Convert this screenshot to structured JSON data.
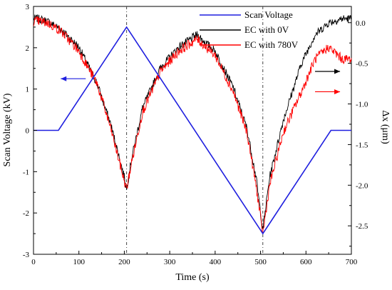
{
  "chart_data": {
    "type": "line",
    "title": "",
    "xlabel": "Time (s)",
    "ylabel_left": "Scan Voltage (kV)",
    "ylabel_right": "Δx (μm)",
    "xlim": [
      0,
      700
    ],
    "ylim_left": [
      -3,
      3
    ],
    "ylim_right": [
      -2.85,
      0.2
    ],
    "x_ticks": [
      "0",
      "100",
      "200",
      "300",
      "400",
      "500",
      "600",
      "700"
    ],
    "y_left_ticks": [
      "-3",
      "-2",
      "-1",
      "0",
      "1",
      "2",
      "3"
    ],
    "y_right_ticks": [
      "-2.5",
      "-2.0",
      "-1.5",
      "-1.0",
      "-0.5",
      "0.0"
    ],
    "legend_position": "top-right",
    "vertical_reference_lines_x": [
      205,
      505
    ],
    "series": [
      {
        "name": "Scan Voltage",
        "color": "#1f1fdf",
        "axis": "left",
        "x": [
          0,
          55,
          205,
          505,
          655,
          700
        ],
        "y": [
          0,
          0,
          2.5,
          -2.5,
          0,
          0
        ]
      },
      {
        "name": "EC with 0V",
        "color": "#000000",
        "axis": "right",
        "x": [
          0,
          10,
          30,
          60,
          100,
          140,
          170,
          200,
          205,
          215,
          240,
          280,
          320,
          360,
          400,
          440,
          470,
          490,
          505,
          520,
          550,
          590,
          620,
          650,
          680,
          700
        ],
        "y": [
          0.05,
          0.05,
          0.02,
          -0.08,
          -0.3,
          -0.75,
          -1.25,
          -1.9,
          -2.05,
          -1.7,
          -1.05,
          -0.55,
          -0.3,
          -0.15,
          -0.35,
          -0.8,
          -1.3,
          -1.9,
          -2.55,
          -1.9,
          -1.2,
          -0.5,
          -0.15,
          0.0,
          0.05,
          0.05
        ]
      },
      {
        "name": "EC with 780V",
        "color": "#ff0000",
        "axis": "right",
        "x": [
          0,
          10,
          30,
          60,
          100,
          140,
          170,
          200,
          205,
          215,
          240,
          280,
          320,
          360,
          400,
          440,
          470,
          490,
          505,
          520,
          550,
          590,
          620,
          650,
          680,
          700
        ],
        "y": [
          0.02,
          0.02,
          0.0,
          -0.1,
          -0.35,
          -0.75,
          -1.3,
          -1.95,
          -2.05,
          -1.75,
          -1.1,
          -0.6,
          -0.35,
          -0.2,
          -0.4,
          -0.85,
          -1.35,
          -2.0,
          -2.6,
          -2.0,
          -1.35,
          -0.85,
          -0.45,
          -0.3,
          -0.45,
          -0.45
        ]
      }
    ],
    "annotations": [
      {
        "name": "left-axis-arrow",
        "direction": "left",
        "color": "#1f1fdf",
        "from_x": 115,
        "to_x": 60,
        "y_left": 1.25
      },
      {
        "name": "black-right-arrow",
        "direction": "right",
        "color": "#000000",
        "from_x": 620,
        "to_x": 675,
        "y_right": -0.6
      },
      {
        "name": "red-right-arrow",
        "direction": "right",
        "color": "#ff0000",
        "from_x": 620,
        "to_x": 675,
        "y_right": -0.85
      }
    ]
  }
}
